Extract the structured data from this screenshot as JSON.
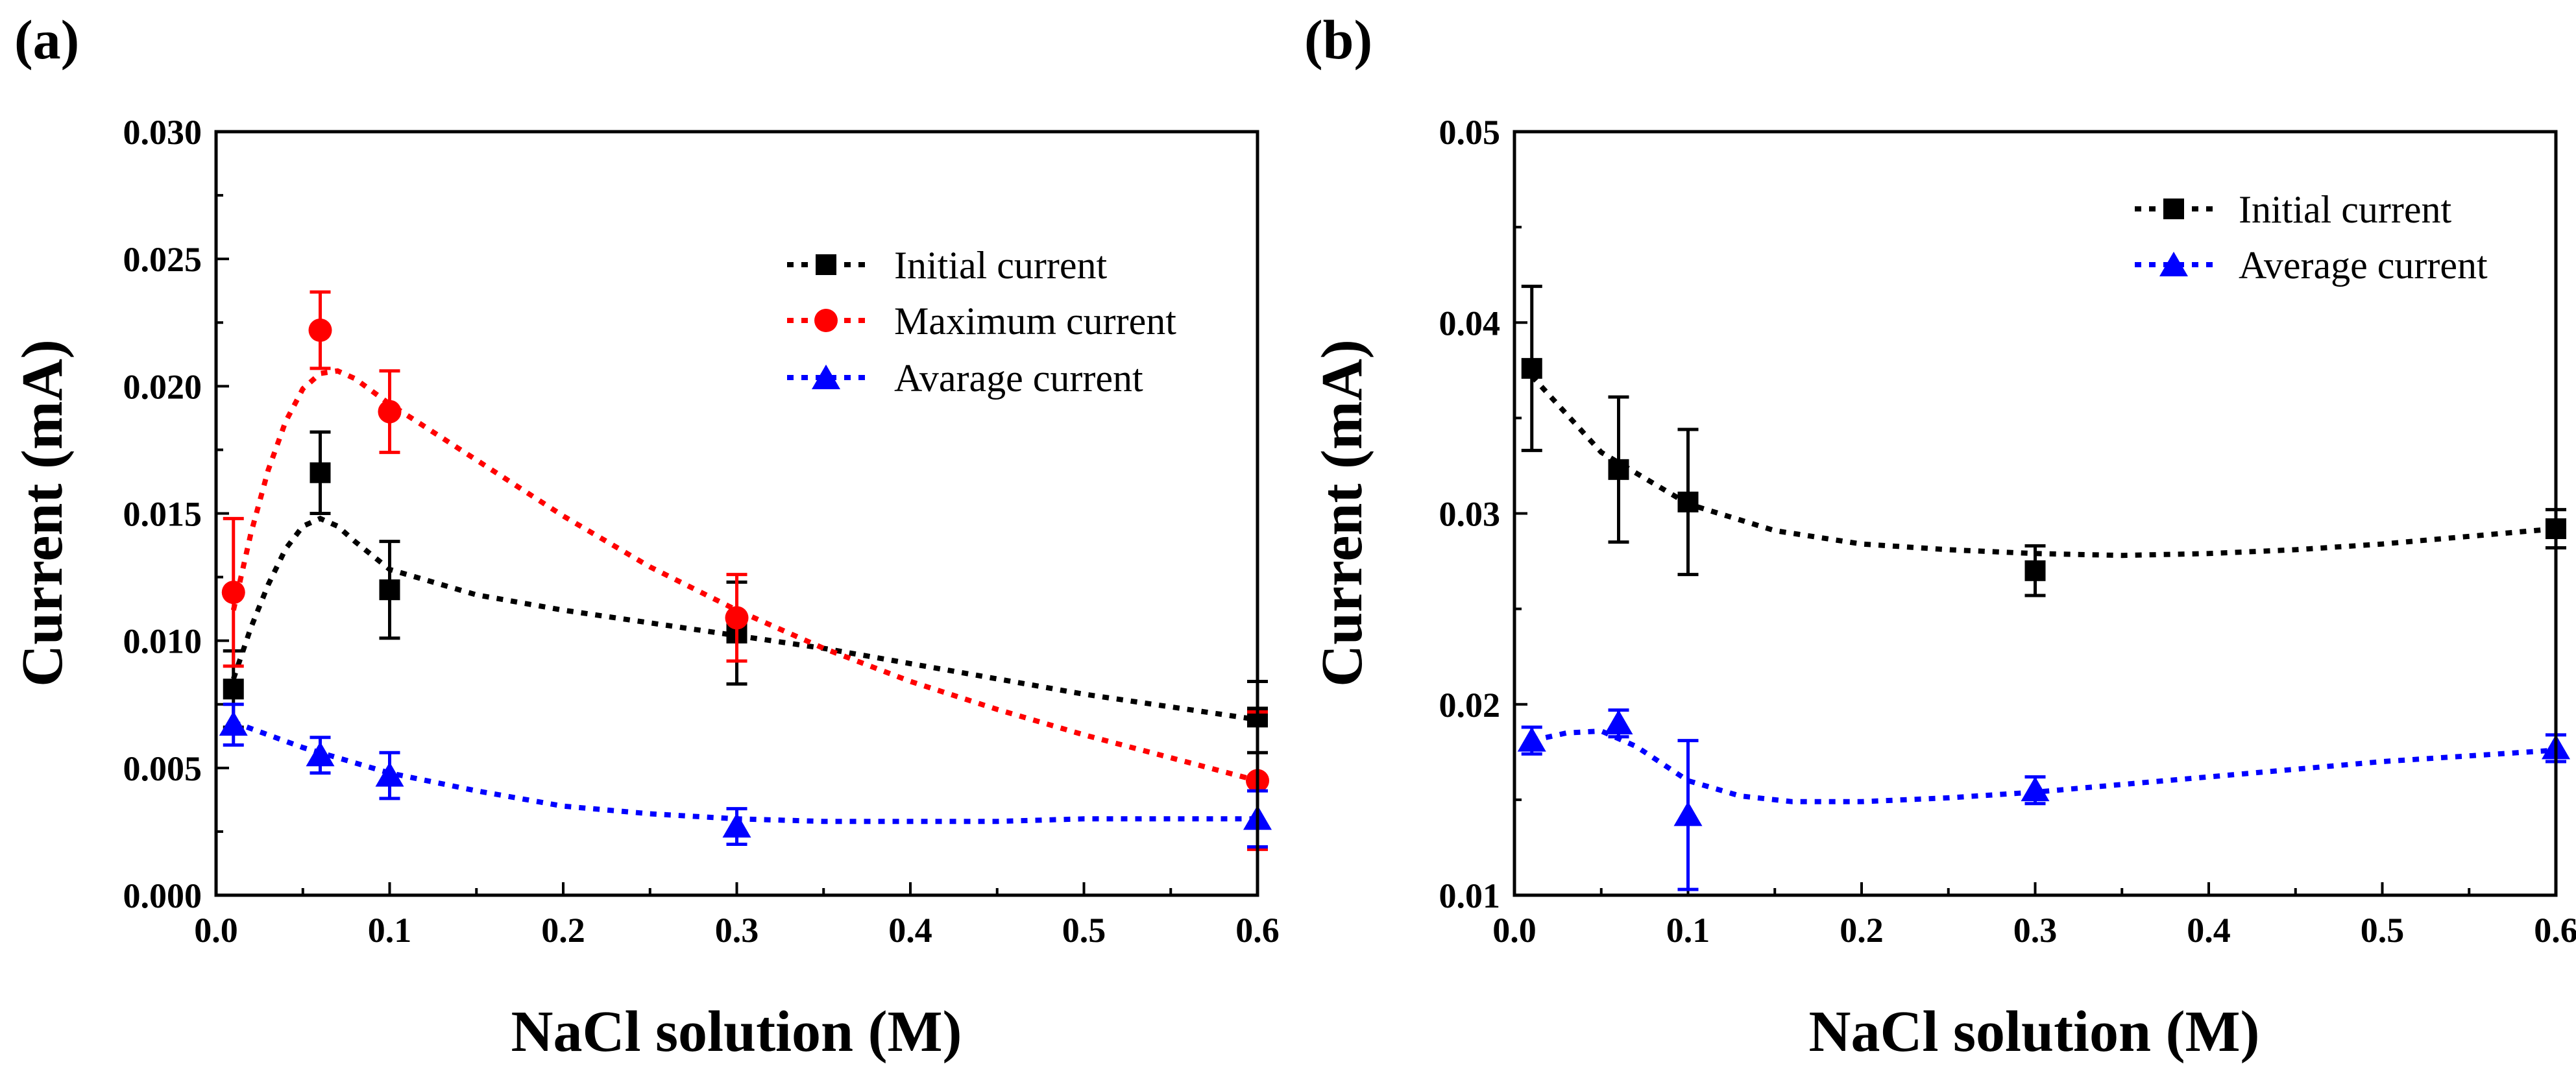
{
  "chart_data": [
    {
      "type": "line",
      "panel_label": "(a)",
      "xlabel": "NaCl solution (M)",
      "ylabel": "Current (mA)",
      "xlim": [
        0.0,
        0.6
      ],
      "ylim": [
        0.0,
        0.03
      ],
      "x_ticks": [
        0.0,
        0.1,
        0.2,
        0.3,
        0.4,
        0.5,
        0.6
      ],
      "x_tick_labels": [
        "0.0",
        "0.1",
        "0.2",
        "0.3",
        "0.4",
        "0.5",
        "0.6"
      ],
      "y_ticks": [
        0.0,
        0.005,
        0.01,
        0.015,
        0.02,
        0.025,
        0.03
      ],
      "y_tick_labels": [
        "0.000",
        "0.005",
        "0.010",
        "0.015",
        "0.020",
        "0.025",
        "0.030"
      ],
      "grid": false,
      "legend_position": "top-right",
      "series": [
        {
          "name": "Initial current",
          "color": "#000000",
          "marker": "square",
          "x": [
            0.01,
            0.06,
            0.1,
            0.3,
            0.6
          ],
          "values": [
            0.0081,
            0.0166,
            0.012,
            0.0103,
            0.007
          ],
          "errors": [
            0.0015,
            0.0016,
            0.0019,
            0.002,
            0.0014
          ],
          "fit_x": [
            0.01,
            0.02,
            0.03,
            0.04,
            0.05,
            0.06,
            0.07,
            0.08,
            0.1,
            0.15,
            0.2,
            0.25,
            0.3,
            0.35,
            0.4,
            0.45,
            0.5,
            0.55,
            0.6
          ],
          "fit_y": [
            0.0085,
            0.0105,
            0.0122,
            0.0136,
            0.0145,
            0.0148,
            0.0145,
            0.0139,
            0.0128,
            0.0118,
            0.0112,
            0.0107,
            0.0102,
            0.0097,
            0.0091,
            0.0085,
            0.0079,
            0.0074,
            0.0069
          ]
        },
        {
          "name": "Maximum current",
          "color": "#ff0000",
          "marker": "circle",
          "x": [
            0.01,
            0.06,
            0.1,
            0.3,
            0.6
          ],
          "values": [
            0.0119,
            0.0222,
            0.019,
            0.0109,
            0.0045
          ],
          "errors": [
            0.0029,
            0.0015,
            0.0016,
            0.0017,
            0.0027
          ],
          "fit_x": [
            0.01,
            0.02,
            0.03,
            0.04,
            0.05,
            0.06,
            0.07,
            0.08,
            0.1,
            0.15,
            0.2,
            0.25,
            0.3,
            0.35,
            0.4,
            0.45,
            0.5,
            0.55,
            0.6
          ],
          "fit_y": [
            0.0112,
            0.0142,
            0.0167,
            0.0186,
            0.0199,
            0.0205,
            0.0206,
            0.0203,
            0.0193,
            0.0171,
            0.0149,
            0.0129,
            0.0112,
            0.0097,
            0.0084,
            0.0073,
            0.0063,
            0.0054,
            0.0045
          ]
        },
        {
          "name": "Avarage current",
          "color": "#0000ff",
          "marker": "triangle",
          "x": [
            0.01,
            0.06,
            0.1,
            0.3,
            0.6
          ],
          "values": [
            0.0067,
            0.0055,
            0.0047,
            0.0027,
            0.003
          ],
          "errors": [
            0.0008,
            0.0007,
            0.0009,
            0.0007,
            0.0011
          ],
          "fit_x": [
            0.01,
            0.05,
            0.1,
            0.15,
            0.2,
            0.25,
            0.3,
            0.35,
            0.4,
            0.45,
            0.5,
            0.55,
            0.6
          ],
          "fit_y": [
            0.0068,
            0.0058,
            0.0048,
            0.0041,
            0.0035,
            0.0032,
            0.003,
            0.0029,
            0.0029,
            0.0029,
            0.003,
            0.003,
            0.003
          ]
        }
      ]
    },
    {
      "type": "line",
      "panel_label": "(b)",
      "xlabel": "NaCl solution (M)",
      "ylabel": "Current (mA)",
      "xlim": [
        0.0,
        0.6
      ],
      "ylim": [
        0.01,
        0.05
      ],
      "x_ticks": [
        0.0,
        0.1,
        0.2,
        0.3,
        0.4,
        0.5,
        0.6
      ],
      "x_tick_labels": [
        "0.0",
        "0.1",
        "0.2",
        "0.3",
        "0.4",
        "0.5",
        "0.6"
      ],
      "y_ticks": [
        0.01,
        0.02,
        0.03,
        0.04,
        0.05
      ],
      "y_tick_labels": [
        "0.01",
        "0.02",
        "0.03",
        "0.04",
        "0.05"
      ],
      "grid": false,
      "legend_position": "top-right",
      "series": [
        {
          "name": "Initial current",
          "color": "#000000",
          "marker": "square",
          "x": [
            0.01,
            0.06,
            0.1,
            0.3,
            0.6
          ],
          "values": [
            0.0376,
            0.0323,
            0.0306,
            0.027,
            0.0292
          ],
          "errors": [
            0.0043,
            0.0038,
            0.0038,
            0.0013,
            0.001
          ],
          "fit_x": [
            0.01,
            0.05,
            0.1,
            0.15,
            0.2,
            0.25,
            0.3,
            0.35,
            0.4,
            0.45,
            0.5,
            0.55,
            0.6
          ],
          "fit_y": [
            0.0372,
            0.0332,
            0.0305,
            0.0291,
            0.0284,
            0.0281,
            0.0279,
            0.0278,
            0.0279,
            0.0281,
            0.0284,
            0.0288,
            0.0292
          ]
        },
        {
          "name": "Average current",
          "color": "#0000ff",
          "marker": "triangle",
          "x": [
            0.01,
            0.06,
            0.1,
            0.3,
            0.6
          ],
          "values": [
            0.0181,
            0.019,
            0.0142,
            0.0155,
            0.0177
          ],
          "errors": [
            0.0007,
            0.0007,
            0.0039,
            0.0007,
            0.0007
          ],
          "fit_x": [
            0.01,
            0.03,
            0.05,
            0.07,
            0.1,
            0.13,
            0.16,
            0.2,
            0.25,
            0.3,
            0.35,
            0.4,
            0.45,
            0.5,
            0.55,
            0.6
          ],
          "fit_y": [
            0.0181,
            0.0185,
            0.0186,
            0.0178,
            0.016,
            0.0152,
            0.0149,
            0.0149,
            0.0151,
            0.0154,
            0.0158,
            0.0162,
            0.0166,
            0.017,
            0.0173,
            0.0176
          ]
        }
      ]
    }
  ]
}
